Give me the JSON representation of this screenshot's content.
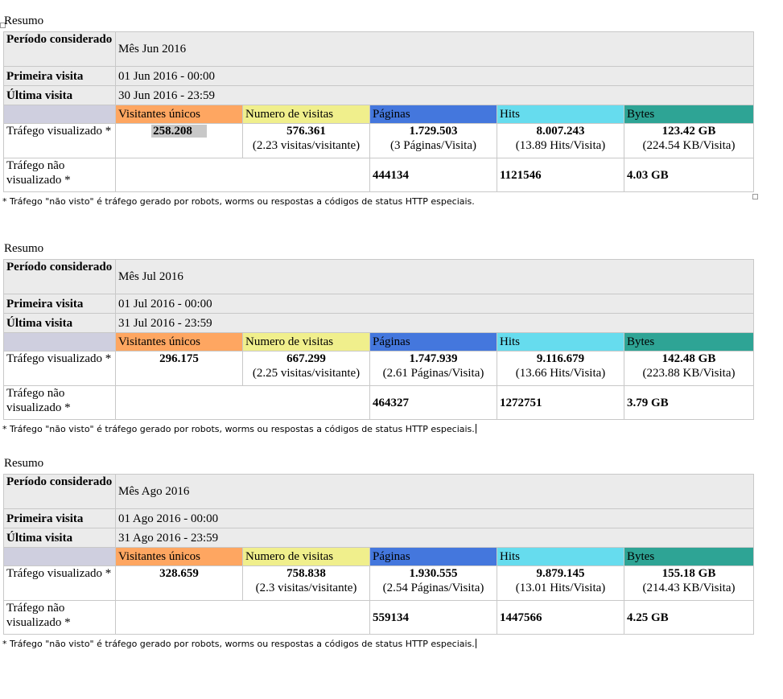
{
  "sections": [
    {
      "title": "Resumo",
      "periodo_label": "Período considerado",
      "periodo_value": "Mês Jun 2016",
      "primeira_label": "Primeira visita",
      "primeira_value": "01 Jun 2016 - 00:00",
      "ultima_label": "Última visita",
      "ultima_value": "30 Jun 2016 - 23:59",
      "headers": [
        "Visitantes únicos",
        "Numero de visitas",
        "Páginas",
        "Hits",
        "Bytes"
      ],
      "trafego_label": "Tráfego visualizado *",
      "visitantes": "258.208",
      "visitas": "576.361",
      "visitas_sub": "(2.23 visitas/visitante)",
      "paginas": "1.729.503",
      "paginas_sub": "(3 Páginas/Visita)",
      "hits": "8.007.243",
      "hits_sub": "(13.89 Hits/Visita)",
      "bytes": "123.42 GB",
      "bytes_sub": "(224.54 KB/Visita)",
      "nao_label": "Tráfego não visualizado *",
      "nao_paginas": "444134",
      "nao_hits": "1121546",
      "nao_bytes": "4.03 GB",
      "note": "* Tráfego \"não visto\" é tráfego gerado por robots, worms ou respostas a códigos de status HTTP especiais."
    },
    {
      "title": "Resumo",
      "periodo_label": "Período considerado",
      "periodo_value": "Mês Jul 2016",
      "primeira_label": "Primeira visita",
      "primeira_value": "01 Jul 2016 - 00:00",
      "ultima_label": "Última visita",
      "ultima_value": "31 Jul 2016 - 23:59",
      "headers": [
        "Visitantes únicos",
        "Numero de visitas",
        "Páginas",
        "Hits",
        "Bytes"
      ],
      "trafego_label": "Tráfego visualizado *",
      "visitantes": "296.175",
      "visitas": "667.299",
      "visitas_sub": "(2.25 visitas/visitante)",
      "paginas": "1.747.939",
      "paginas_sub": "(2.61 Páginas/Visita)",
      "hits": "9.116.679",
      "hits_sub": "(13.66 Hits/Visita)",
      "bytes": "142.48 GB",
      "bytes_sub": "(223.88 KB/Visita)",
      "nao_label": "Tráfego não visualizado *",
      "nao_paginas": "464327",
      "nao_hits": "1272751",
      "nao_bytes": "3.79 GB",
      "note": "* Tráfego \"não visto\" é tráfego gerado por robots, worms ou respostas a códigos de status HTTP especiais."
    },
    {
      "title": "Resumo",
      "periodo_label": "Período considerado",
      "periodo_value": "Mês Ago 2016",
      "primeira_label": "Primeira visita",
      "primeira_value": "01 Ago 2016 - 00:00",
      "ultima_label": "Última visita",
      "ultima_value": "31 Ago 2016 - 23:59",
      "headers": [
        "Visitantes únicos",
        "Numero de visitas",
        "Páginas",
        "Hits",
        "Bytes"
      ],
      "trafego_label": "Tráfego visualizado *",
      "visitantes": "328.659",
      "visitas": "758.838",
      "visitas_sub": "(2.3 visitas/visitante)",
      "paginas": "1.930.555",
      "paginas_sub": "(2.54 Páginas/Visita)",
      "hits": "9.879.145",
      "hits_sub": "(13.01 Hits/Visita)",
      "bytes": "155.18 GB",
      "bytes_sub": "(214.43 KB/Visita)",
      "nao_label": "Tráfego não visualizado *",
      "nao_paginas": "559134",
      "nao_hits": "1447566",
      "nao_bytes": "4.25 GB",
      "note": "* Tráfego \"não visto\" é tráfego gerado por robots, worms ou respostas a códigos de status HTTP especiais."
    }
  ],
  "colors": {
    "visitantes": "#fea661",
    "visitas": "#f0ef8c",
    "paginas": "#4477dd",
    "hits": "#66dcee",
    "bytes": "#2ea495",
    "label_bg": "#ebebeb"
  }
}
